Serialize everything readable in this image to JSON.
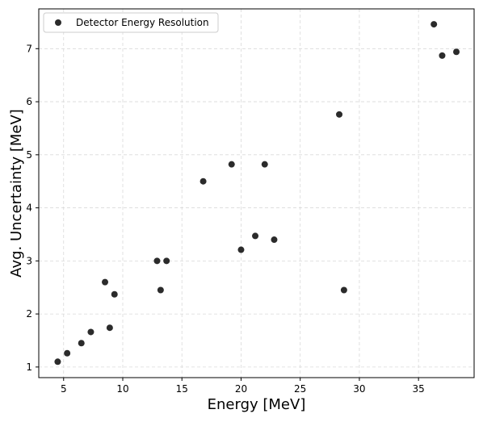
{
  "chart_data": {
    "type": "scatter",
    "xlabel": "Energy [MeV]",
    "ylabel": "Avg. Uncertainty [MeV]",
    "xlim": [
      2.9,
      39.7
    ],
    "ylim": [
      0.8,
      7.75
    ],
    "xticks": [
      5,
      10,
      15,
      20,
      25,
      30,
      35
    ],
    "yticks": [
      1,
      2,
      3,
      4,
      5,
      6,
      7
    ],
    "grid": true,
    "legend": {
      "position": "top-left"
    },
    "series": [
      {
        "name": "Detector Energy Resolution",
        "color": "#2b2b2b",
        "marker": "circle",
        "points": [
          {
            "x": 4.5,
            "y": 1.1
          },
          {
            "x": 5.3,
            "y": 1.26
          },
          {
            "x": 6.5,
            "y": 1.45
          },
          {
            "x": 7.3,
            "y": 1.66
          },
          {
            "x": 8.5,
            "y": 2.6
          },
          {
            "x": 8.9,
            "y": 1.74
          },
          {
            "x": 9.3,
            "y": 2.37
          },
          {
            "x": 12.9,
            "y": 3.0
          },
          {
            "x": 13.2,
            "y": 2.45
          },
          {
            "x": 13.7,
            "y": 3.0
          },
          {
            "x": 16.8,
            "y": 4.5
          },
          {
            "x": 19.2,
            "y": 4.82
          },
          {
            "x": 20.0,
            "y": 3.21
          },
          {
            "x": 21.2,
            "y": 3.47
          },
          {
            "x": 22.0,
            "y": 4.82
          },
          {
            "x": 22.8,
            "y": 3.4
          },
          {
            "x": 28.3,
            "y": 5.76
          },
          {
            "x": 28.7,
            "y": 2.45
          },
          {
            "x": 36.3,
            "y": 7.46
          },
          {
            "x": 37.0,
            "y": 6.87
          },
          {
            "x": 38.2,
            "y": 6.94
          }
        ]
      }
    ]
  }
}
